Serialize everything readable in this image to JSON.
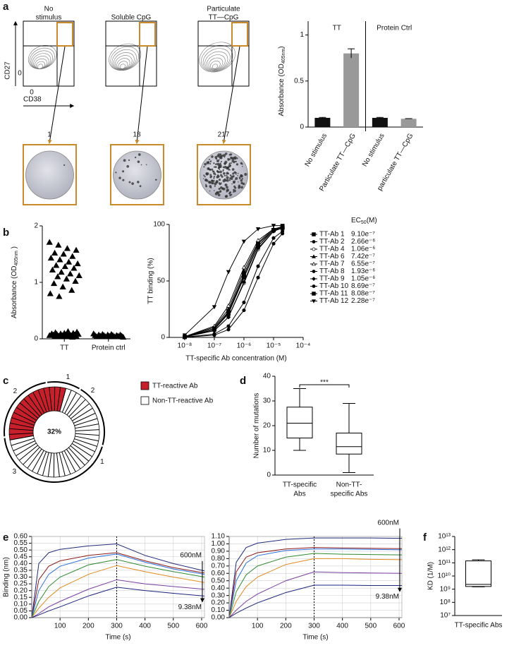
{
  "panel_letters": [
    "a",
    "b",
    "c",
    "d",
    "e",
    "f"
  ],
  "flow": {
    "titles": [
      [
        "No",
        "stimulus"
      ],
      [
        "Soluble CpG"
      ],
      [
        "Particulate",
        "TT—CpG"
      ]
    ],
    "ylabel": "CD27",
    "xlabel": "CD38",
    "xticks": [
      0
    ],
    "yticks": [
      0
    ],
    "spot_counts": [
      1,
      18,
      217
    ]
  },
  "chart_data": [
    {
      "type": "bar",
      "ylabel": {
        "text": "Absorbance (OD",
        "sub": "405nm",
        "end": ")"
      },
      "groups": [
        "TT",
        "Protein Ctrl"
      ],
      "categories": [
        "No stimulus",
        "Particulate TT—CpG",
        "No stimulus",
        "particulate TT—CpG"
      ],
      "values": [
        0.1,
        0.8,
        0.1,
        0.09
      ],
      "errors": [
        0.005,
        0.05,
        0.005,
        0.002
      ],
      "colors": [
        "#111111",
        "#999999",
        "#111111",
        "#999999"
      ],
      "ylim": [
        0,
        1.15
      ],
      "yticks": [
        0,
        0.5,
        1
      ]
    },
    {
      "type": "strip",
      "ylabel": {
        "text": "Absorbance (OD",
        "sub": "405nm",
        "end": " )"
      },
      "categories": [
        "TT",
        "Protein ctrl"
      ],
      "marker": "triangle",
      "values": [
        [
          1.71,
          1.66,
          1.6,
          1.57,
          1.52,
          1.5,
          1.46,
          1.43,
          1.4,
          1.36,
          1.33,
          1.3,
          1.28,
          1.25,
          1.22,
          1.18,
          1.15,
          1.12,
          1.1,
          1.06,
          1.02,
          0.98,
          0.92,
          0.86,
          0.8,
          0.75,
          0.13,
          0.12,
          0.11,
          0.1,
          0.1,
          0.09,
          0.09,
          0.08,
          0.08,
          0.08,
          0.07,
          0.07,
          0.07,
          0.06,
          0.06,
          0.06,
          0.05,
          0.05,
          0.05,
          0.04,
          0.04,
          0.03
        ],
        [
          0.09,
          0.08,
          0.08,
          0.07,
          0.07,
          0.07,
          0.06,
          0.06,
          0.06,
          0.06,
          0.05,
          0.05,
          0.05,
          0.05,
          0.04,
          0.04,
          0.04,
          0.03
        ]
      ],
      "ylim": [
        0,
        2
      ],
      "yticks": [
        0,
        1,
        2
      ]
    },
    {
      "type": "line",
      "log_x": true,
      "xlabel": "TT-specific Ab concentration (M)",
      "ylabel": "TT binding (%)",
      "x": [
        1e-08,
        1e-07,
        3e-07,
        1e-06,
        3e-06,
        1e-05,
        2e-05
      ],
      "xlim": [
        3e-09,
        0.0001
      ],
      "xticks": [
        {
          "value": 1e-08,
          "label": "10⁻⁸"
        },
        {
          "value": 1e-07,
          "label": "10⁻⁷"
        },
        {
          "value": 1e-06,
          "label": "10⁻⁶"
        },
        {
          "value": 1e-05,
          "label": "10⁻⁵"
        },
        {
          "value": 0.0001,
          "label": "10⁻⁴"
        }
      ],
      "ylim": [
        0,
        100
      ],
      "yticks": [
        0,
        50,
        100
      ],
      "legend_header": {
        "text": "EC",
        "sub": "50",
        "end": "(M)"
      },
      "series": [
        {
          "name": "TT-Ab 1",
          "marker": "square",
          "ec50": "9.10e⁻⁷",
          "values": [
            0.4,
            7,
            21,
            53,
            81,
            95,
            97
          ]
        },
        {
          "name": "TT-Ab 2",
          "marker": "circle",
          "ec50": "2.66e⁻⁶",
          "values": [
            0.1,
            2,
            7,
            24,
            53,
            83,
            92
          ]
        },
        {
          "name": "TT-Ab 4",
          "marker": "circle-open",
          "ec50": "1.06e⁻⁶",
          "values": [
            0.4,
            6,
            18,
            48,
            78,
            94,
            97
          ]
        },
        {
          "name": "TT-Ab 6",
          "marker": "triangle",
          "ec50": "7.42e⁻⁷",
          "values": [
            0.6,
            9,
            25,
            59,
            84,
            96,
            98
          ]
        },
        {
          "name": "TT-Ab 7",
          "marker": "triangle-open",
          "ec50": "6.55e⁻⁷",
          "values": [
            0.7,
            10,
            28,
            62,
            86,
            96,
            98
          ]
        },
        {
          "name": "TT-Ab 8",
          "marker": "circle",
          "ec50": "1.93e⁻⁶",
          "values": [
            0.2,
            3,
            10,
            31,
            63,
            88,
            94
          ]
        },
        {
          "name": "TT-Ab 9",
          "marker": "diamond",
          "ec50": "1.05e⁻⁶",
          "values": [
            0.4,
            6,
            18,
            49,
            79,
            94,
            97
          ]
        },
        {
          "name": "TT-Ab 10",
          "marker": "circle",
          "ec50": "8.69e⁻⁷",
          "values": [
            0.5,
            7,
            22,
            54,
            81,
            95,
            98
          ]
        },
        {
          "name": "TT-Ab 11",
          "marker": "square",
          "ec50": "8.08e⁻⁷",
          "values": [
            0.5,
            8,
            23,
            56,
            83,
            95,
            98
          ]
        },
        {
          "name": "TT-Ab 12",
          "marker": "triangle-down",
          "ec50": "2.28e⁻⁷",
          "values": [
            2,
            27,
            58,
            85,
            96,
            99,
            99
          ]
        }
      ]
    },
    {
      "type": "donut",
      "center_label": "32%",
      "group_labels": [
        "1",
        "2",
        "3",
        "1",
        "2"
      ],
      "series": [
        {
          "name": "TT-reactive Ab",
          "color": "#c8202a",
          "value": 32
        },
        {
          "name": "Non-TT-reactive Ab",
          "color": "#ffffff",
          "value": 68
        }
      ]
    },
    {
      "type": "box",
      "ylabel": "Number of mutations",
      "categories": [
        [
          "TT-specific",
          "Abs"
        ],
        [
          "Non-TT-",
          "specific Abs"
        ]
      ],
      "boxes": [
        {
          "min": 10,
          "q1": 15,
          "median": 21,
          "q3": 27.5,
          "max": 35
        },
        {
          "min": 1,
          "q1": 8.5,
          "median": 11.5,
          "q3": 17,
          "max": 29
        }
      ],
      "ylim": [
        0,
        40
      ],
      "yticks": [
        0,
        10,
        20,
        30,
        40
      ],
      "annotation": "***"
    },
    {
      "type": "line",
      "xlabel": "Time (s)",
      "ylabel": "Binding (nm)",
      "grid": true,
      "vline": 300,
      "annotations": [
        "600nM",
        "9.38nM"
      ],
      "x": [
        0,
        25,
        60,
        100,
        200,
        300,
        400,
        500,
        610
      ],
      "xlim": [
        0,
        610
      ],
      "xticks": [
        100,
        200,
        300,
        400,
        500,
        600
      ],
      "ylim": [
        0,
        0.6
      ],
      "yticks": [
        {
          "value": 0,
          "label": "0.00"
        },
        {
          "value": 0.05,
          "label": "0.05"
        },
        {
          "value": 0.1,
          "label": "0.10"
        },
        {
          "value": 0.15,
          "label": "0.15"
        },
        {
          "value": 0.2,
          "label": "0.20"
        },
        {
          "value": 0.25,
          "label": "0.25"
        },
        {
          "value": 0.3,
          "label": "0.30"
        },
        {
          "value": 0.35,
          "label": "0.35"
        },
        {
          "value": 0.4,
          "label": "0.40"
        },
        {
          "value": 0.45,
          "label": "0.45"
        },
        {
          "value": 0.5,
          "label": "0.50"
        },
        {
          "value": 0.55,
          "label": "0.55"
        },
        {
          "value": 0.6,
          "label": "0.60"
        }
      ],
      "series": [
        {
          "color": "#1f2a7a",
          "values": [
            0,
            0.4,
            0.48,
            0.505,
            0.53,
            0.545,
            0.46,
            0.4,
            0.345
          ]
        },
        {
          "color": "#8b1a1a",
          "values": [
            0,
            0.28,
            0.38,
            0.42,
            0.46,
            0.48,
            0.42,
            0.37,
            0.33
          ]
        },
        {
          "color": "#2a6fdb",
          "values": [
            0,
            0.2,
            0.32,
            0.38,
            0.44,
            0.47,
            0.41,
            0.36,
            0.32
          ]
        },
        {
          "color": "#2e8b2e",
          "values": [
            0,
            0.12,
            0.23,
            0.3,
            0.39,
            0.43,
            0.38,
            0.34,
            0.3
          ]
        },
        {
          "color": "#e08a1e",
          "values": [
            0,
            0.07,
            0.15,
            0.22,
            0.32,
            0.385,
            0.34,
            0.3,
            0.26
          ]
        },
        {
          "color": "#7a3fa0",
          "values": [
            0,
            0.03,
            0.08,
            0.12,
            0.21,
            0.28,
            0.25,
            0.23,
            0.21
          ]
        },
        {
          "color": "#1a237e",
          "values": [
            0,
            0.02,
            0.05,
            0.08,
            0.16,
            0.225,
            0.2,
            0.18,
            0.16
          ]
        }
      ]
    },
    {
      "type": "line",
      "xlabel": "Time (s)",
      "grid": true,
      "vline": 300,
      "annotations": [
        "600nM",
        "9.38nM"
      ],
      "x": [
        0,
        25,
        60,
        100,
        200,
        300,
        400,
        500,
        610
      ],
      "xlim": [
        0,
        610
      ],
      "xticks": [
        100,
        200,
        300,
        400,
        500,
        600
      ],
      "ylim": [
        0,
        1.1
      ],
      "yticks": [
        {
          "value": 0,
          "label": "0.00"
        },
        {
          "value": 0.1,
          "label": "0.10"
        },
        {
          "value": 0.2,
          "label": "0.20"
        },
        {
          "value": 0.3,
          "label": "0.30"
        },
        {
          "value": 0.4,
          "label": "0.40"
        },
        {
          "value": 0.5,
          "label": "0.50"
        },
        {
          "value": 0.6,
          "label": "0.60"
        },
        {
          "value": 0.7,
          "label": "0.70"
        },
        {
          "value": 0.8,
          "label": "0.80"
        },
        {
          "value": 0.9,
          "label": "0.90"
        },
        {
          "value": 1,
          "label": "1.00"
        },
        {
          "value": 1.1,
          "label": "1.10"
        }
      ],
      "series": [
        {
          "color": "#1f2a7a",
          "values": [
            0,
            0.75,
            0.95,
            1.01,
            1.06,
            1.08,
            1.08,
            1.08,
            1.075
          ]
        },
        {
          "color": "#8b1a1a",
          "values": [
            0,
            0.62,
            0.82,
            0.88,
            0.93,
            0.95,
            0.945,
            0.94,
            0.935
          ]
        },
        {
          "color": "#2a6fdb",
          "values": [
            0,
            0.5,
            0.74,
            0.84,
            0.91,
            0.93,
            0.93,
            0.925,
            0.92
          ]
        },
        {
          "color": "#2e8b2e",
          "values": [
            0,
            0.35,
            0.58,
            0.7,
            0.82,
            0.87,
            0.86,
            0.855,
            0.85
          ]
        },
        {
          "color": "#e08a1e",
          "values": [
            0,
            0.22,
            0.42,
            0.55,
            0.72,
            0.8,
            0.8,
            0.79,
            0.785
          ]
        },
        {
          "color": "#7a3fa0",
          "values": [
            0,
            0.1,
            0.22,
            0.32,
            0.5,
            0.62,
            0.61,
            0.605,
            0.6
          ]
        },
        {
          "color": "#1a237e",
          "values": [
            0,
            0.06,
            0.13,
            0.2,
            0.34,
            0.44,
            0.44,
            0.435,
            0.435
          ]
        }
      ]
    },
    {
      "type": "box",
      "log_y": true,
      "ylabel": "KD (1/M)",
      "categories": [
        [
          "TT-specific Abs"
        ]
      ],
      "boxes": [
        {
          "min": 1500000000.0,
          "q1": 1600000000.0,
          "median": 2300000000.0,
          "q3": 140000000000.0,
          "max": 170000000000.0
        }
      ],
      "ylim": [
        10000000.0,
        10000000000000.0
      ],
      "yticks": [
        {
          "value": 10000000.0,
          "label": "10⁷"
        },
        {
          "value": 100000000.0,
          "label": "10⁸"
        },
        {
          "value": 1000000000.0,
          "label": "10⁹"
        },
        {
          "value": 10000000000.0,
          "label": "10¹⁰"
        },
        {
          "value": 100000000000.0,
          "label": "10¹¹"
        },
        {
          "value": 1000000000000.0,
          "label": "10¹²"
        },
        {
          "value": 10000000000000.0,
          "label": "10¹³"
        }
      ]
    }
  ]
}
